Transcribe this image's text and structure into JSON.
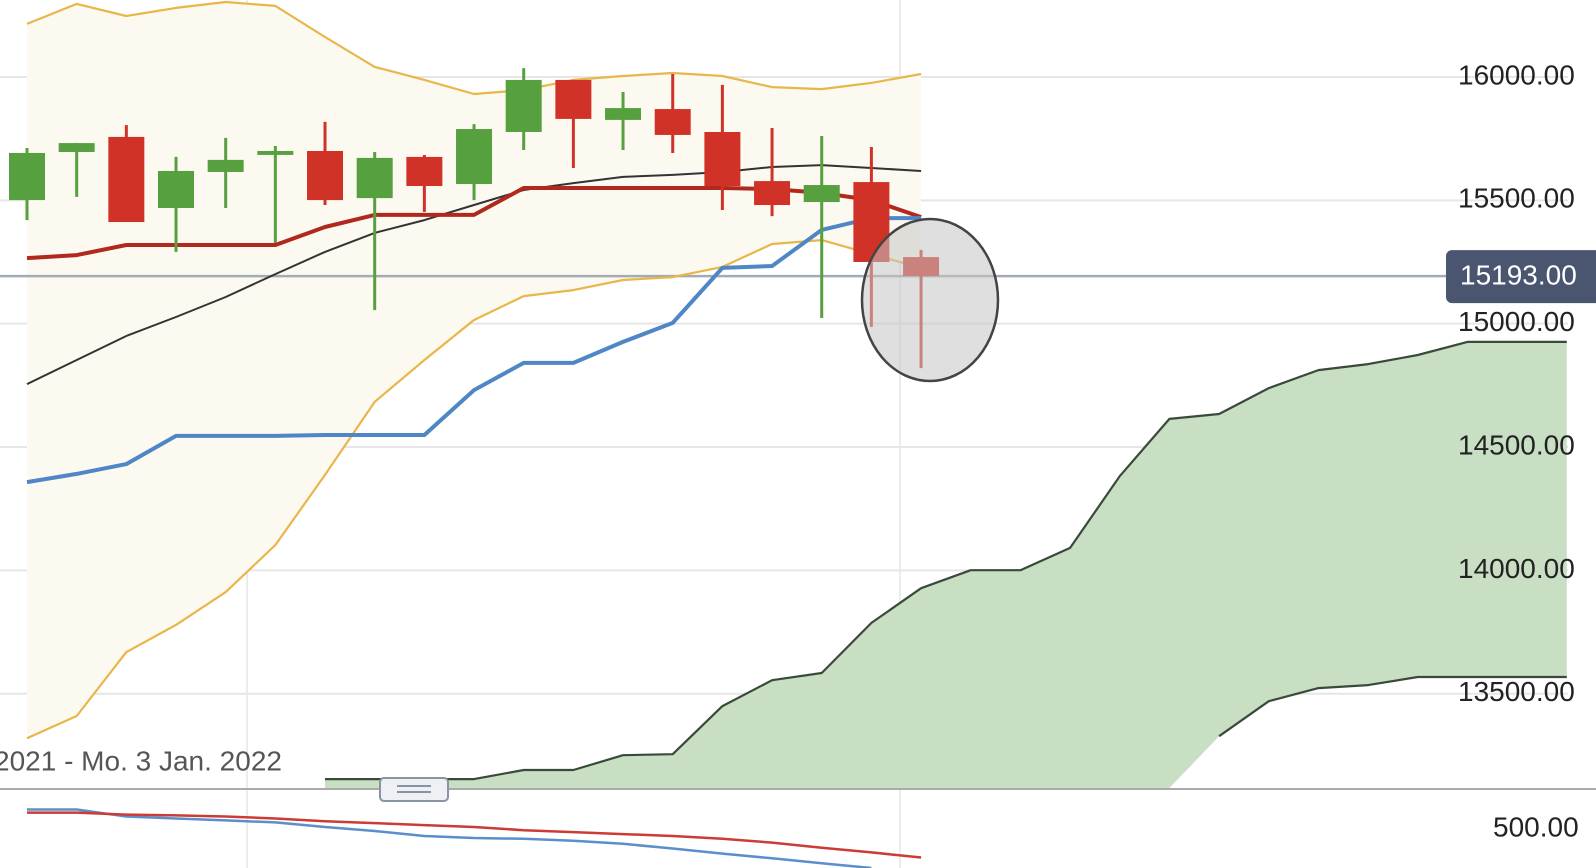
{
  "chart_data": [
    {
      "type": "candlestick",
      "range_label": "2021 - Mo. 3 Jan. 2022",
      "categories": [
        null,
        null,
        null,
        null,
        null,
        null,
        null,
        null,
        null,
        null,
        null,
        null,
        null,
        null,
        null,
        null,
        null,
        null,
        null,
        null,
        null,
        null,
        null,
        null,
        null,
        null,
        null,
        null,
        null,
        null,
        null,
        null
      ],
      "open": [
        15501,
        15696,
        15757,
        15469,
        15615,
        15684,
        15700,
        15509,
        15676,
        15566,
        15777,
        15988,
        15826,
        15870,
        15777,
        15578,
        15493,
        15574,
        15270,
        null,
        null,
        null,
        null,
        null,
        null,
        null,
        null,
        null,
        null,
        null,
        null,
        null
      ],
      "high": [
        15712,
        15732,
        15805,
        15676,
        15753,
        15720,
        15818,
        15696,
        15684,
        15809,
        16036,
        15988,
        15939,
        16012,
        15968,
        15793,
        15761,
        15716,
        15299,
        null,
        null,
        null,
        null,
        null,
        null,
        null,
        null,
        null,
        null,
        null,
        null,
        null
      ],
      "low": [
        15420,
        15514,
        15412,
        15291,
        15469,
        15327,
        15481,
        15055,
        15453,
        15501,
        15704,
        15631,
        15704,
        15692,
        15461,
        15436,
        15023,
        14987,
        14820,
        null,
        null,
        null,
        null,
        null,
        null,
        null,
        null,
        null,
        null,
        null,
        null,
        null
      ],
      "close": [
        15692,
        15732,
        15412,
        15619,
        15664,
        15700,
        15501,
        15672,
        15558,
        15789,
        15988,
        15830,
        15874,
        15765,
        15558,
        15481,
        15562,
        15250,
        15193,
        null,
        null,
        null,
        null,
        null,
        null,
        null,
        null,
        null,
        null,
        null,
        null,
        null
      ],
      "up_color": "#56a03f",
      "down_color": "#d03228",
      "series": [
        {
          "color": "#e8b64a",
          "values": [
            16215,
            16296,
            16247,
            16280,
            16304,
            16288,
            16162,
            16041,
            15988,
            15931,
            15947,
            15988,
            16004,
            16016,
            16004,
            15959,
            15951,
            15976,
            16012,
            null,
            null,
            null,
            null,
            null,
            null,
            null,
            null,
            null,
            null,
            null,
            null,
            null
          ]
        },
        {
          "color": "#e8b64a",
          "values": [
            13320,
            13410,
            13669,
            13779,
            13912,
            14103,
            14387,
            14683,
            14853,
            15015,
            15112,
            15136,
            15177,
            15189,
            15230,
            15323,
            15339,
            15282,
            15226,
            null,
            null,
            null,
            null,
            null,
            null,
            null,
            null,
            null,
            null,
            null,
            null,
            null
          ]
        },
        {
          "color": "#333333",
          "values": [
            14755,
            14853,
            14950,
            15027,
            15108,
            15201,
            15291,
            15368,
            15420,
            15481,
            15542,
            15570,
            15595,
            15603,
            15615,
            15635,
            15643,
            15631,
            15619,
            null,
            null,
            null,
            null,
            null,
            null,
            null,
            null,
            null,
            null,
            null,
            null,
            null
          ]
        },
        {
          "color": "#b0281e",
          "values": [
            15266,
            15278,
            15319,
            15319,
            15319,
            15319,
            15392,
            15441,
            15441,
            15441,
            15550,
            15550,
            15550,
            15550,
            15550,
            15546,
            15530,
            15501,
            15432,
            null,
            null,
            null,
            null,
            null,
            null,
            null,
            null,
            null,
            null,
            null,
            null,
            null
          ]
        },
        {
          "color": "#4f86c6",
          "values": [
            14358,
            14391,
            14431,
            14545,
            14545,
            14545,
            14549,
            14549,
            14549,
            14731,
            14841,
            14841,
            14926,
            15003,
            15226,
            15234,
            15380,
            15428,
            15428,
            null,
            null,
            null,
            null,
            null,
            null,
            null,
            null,
            null,
            null,
            null,
            null,
            null
          ]
        },
        {
          "color": "#3a4a3a",
          "values": [
            null,
            null,
            null,
            null,
            null,
            null,
            13154,
            13154,
            13154,
            13154,
            13191,
            13191,
            13251,
            13255,
            13450,
            13555,
            13584,
            13787,
            13928,
            14001,
            14001,
            14091,
            14382,
            14614,
            14634,
            14739,
            14812,
            14836,
            14873,
            14926,
            14926,
            14926
          ]
        },
        {
          "color": "#3a4a3a",
          "values": [
            null,
            null,
            null,
            null,
            null,
            null,
            null,
            null,
            null,
            null,
            null,
            null,
            null,
            null,
            null,
            null,
            null,
            null,
            null,
            null,
            null,
            null,
            null,
            null,
            13328,
            13470,
            13523,
            13535,
            13568,
            13568,
            13568,
            13568
          ]
        }
      ],
      "band_fill": "#fcfaf0",
      "cloud_fill": "#c8dfc4",
      "last_price": {
        "value": 15193,
        "label": "15193.00"
      },
      "ylim": [
        13118,
        16312
      ],
      "yticks": [
        {
          "value": 13500,
          "label": "13500.00"
        },
        {
          "value": 14000,
          "label": "14000.00"
        },
        {
          "value": 14500,
          "label": "14500.00"
        },
        {
          "value": 15000,
          "label": "15000.00"
        },
        {
          "value": 15500,
          "label": "15500.00"
        },
        {
          "value": 16000,
          "label": "16000.00"
        }
      ],
      "grid": true
    },
    {
      "type": "line",
      "series": [
        {
          "color": "#5b8fcc",
          "values": [
            550,
            550,
            532,
            527,
            522,
            517,
            505,
            495,
            482,
            477,
            475,
            470,
            462,
            450,
            437,
            425,
            412,
            400,
            null
          ]
        },
        {
          "color": "#cc3b35",
          "values": [
            542,
            542,
            537,
            535,
            532,
            527,
            520,
            515,
            510,
            505,
            497,
            492,
            487,
            482,
            475,
            465,
            452,
            440,
            427
          ]
        }
      ],
      "ylim": [
        400,
        600
      ],
      "yticks": [
        {
          "value": 500,
          "label": "500.00"
        }
      ]
    }
  ]
}
